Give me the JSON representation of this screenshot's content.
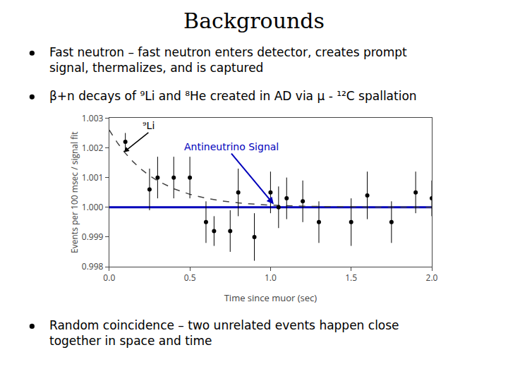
{
  "chart_data": {
    "type": "scatter",
    "title": "Backgrounds",
    "bullets": [
      [
        "Fast neutron – fast neutron enters detector, creates prompt",
        "signal, thermalizes, and is captured"
      ],
      [
        "β+n decays of ⁹Li and ⁸He created in AD via μ - ¹²C spallation"
      ],
      [
        "Random coincidence – two unrelated events happen close",
        "together in space and time"
      ]
    ],
    "x_label": "Time since muor (sec)",
    "y_label": "Events per 100 msec / signal fit",
    "xlim": [
      0.0,
      2.0
    ],
    "ylim": [
      0.998,
      1.003
    ],
    "xticks": [
      {
        "value": 0.0,
        "label": "0.0"
      },
      0.5,
      {
        "value": 1.0,
        "label": "1.0"
      },
      1.5,
      {
        "value": 2.0,
        "label": "2.0"
      }
    ],
    "yticks": [
      0.998,
      0.999,
      {
        "value": 1.0,
        "label": "1.000"
      },
      1.001,
      1.002,
      1.003
    ],
    "grid": false,
    "series": [
      {
        "type": "scatter",
        "marker": "circle",
        "color": "#000000",
        "x": [
          0.1,
          0.25,
          0.3,
          0.4,
          0.5,
          0.6,
          0.65,
          0.75,
          0.8,
          0.9,
          1.0,
          1.05,
          1.1,
          1.2,
          1.3,
          1.5,
          1.6,
          1.75,
          1.9,
          2.0
        ],
        "values": [
          1.0022,
          1.0006,
          1.001,
          1.001,
          1.001,
          0.9995,
          0.9992,
          0.9992,
          1.0005,
          0.999,
          1.0005,
          1.0,
          1.0003,
          1.0002,
          0.9995,
          0.9995,
          1.0004,
          0.9995,
          1.0005,
          1.0003
        ],
        "errors": [
          0.0003,
          0.0007,
          0.0007,
          0.0007,
          0.0007,
          0.0007,
          0.0005,
          0.0007,
          0.0008,
          0.0008,
          0.0007,
          0.0007,
          0.0007,
          0.0007,
          0.0007,
          0.0008,
          0.0008,
          0.0007,
          0.0007,
          0.0006
        ]
      },
      {
        "type": "line",
        "line_style": "solid",
        "color": "#0000bb",
        "x": [
          0.0,
          2.0
        ],
        "values": [
          1.0,
          1.0
        ]
      },
      {
        "type": "line",
        "line_style": "dashed",
        "color": "#444444",
        "x": [
          0.0,
          0.05,
          0.1,
          0.15,
          0.2,
          0.25,
          0.3,
          0.4,
          0.5,
          0.6,
          0.7,
          0.8,
          0.9,
          1.0,
          1.2,
          1.4,
          1.6,
          1.8,
          2.0
        ],
        "values": [
          1.0026,
          1.0021748,
          1.0018192,
          1.0015217,
          1.0012728,
          1.0010647,
          1.0008906,
          1.0006231,
          1.000436,
          1.000305,
          1.0002134,
          1.0001493,
          1.0001045,
          1.0000731,
          1.0000358,
          1.0000175,
          1.0000086,
          1.0000042,
          1.0000021
        ]
      }
    ],
    "annotations": [
      {
        "text": "⁹Li",
        "x": 0.09,
        "y": 1.00185,
        "color": "#000000"
      },
      {
        "text": "Antineutrino Signal",
        "x": 1.02,
        "y": 1.0001,
        "color": "#0000bb"
      }
    ]
  }
}
